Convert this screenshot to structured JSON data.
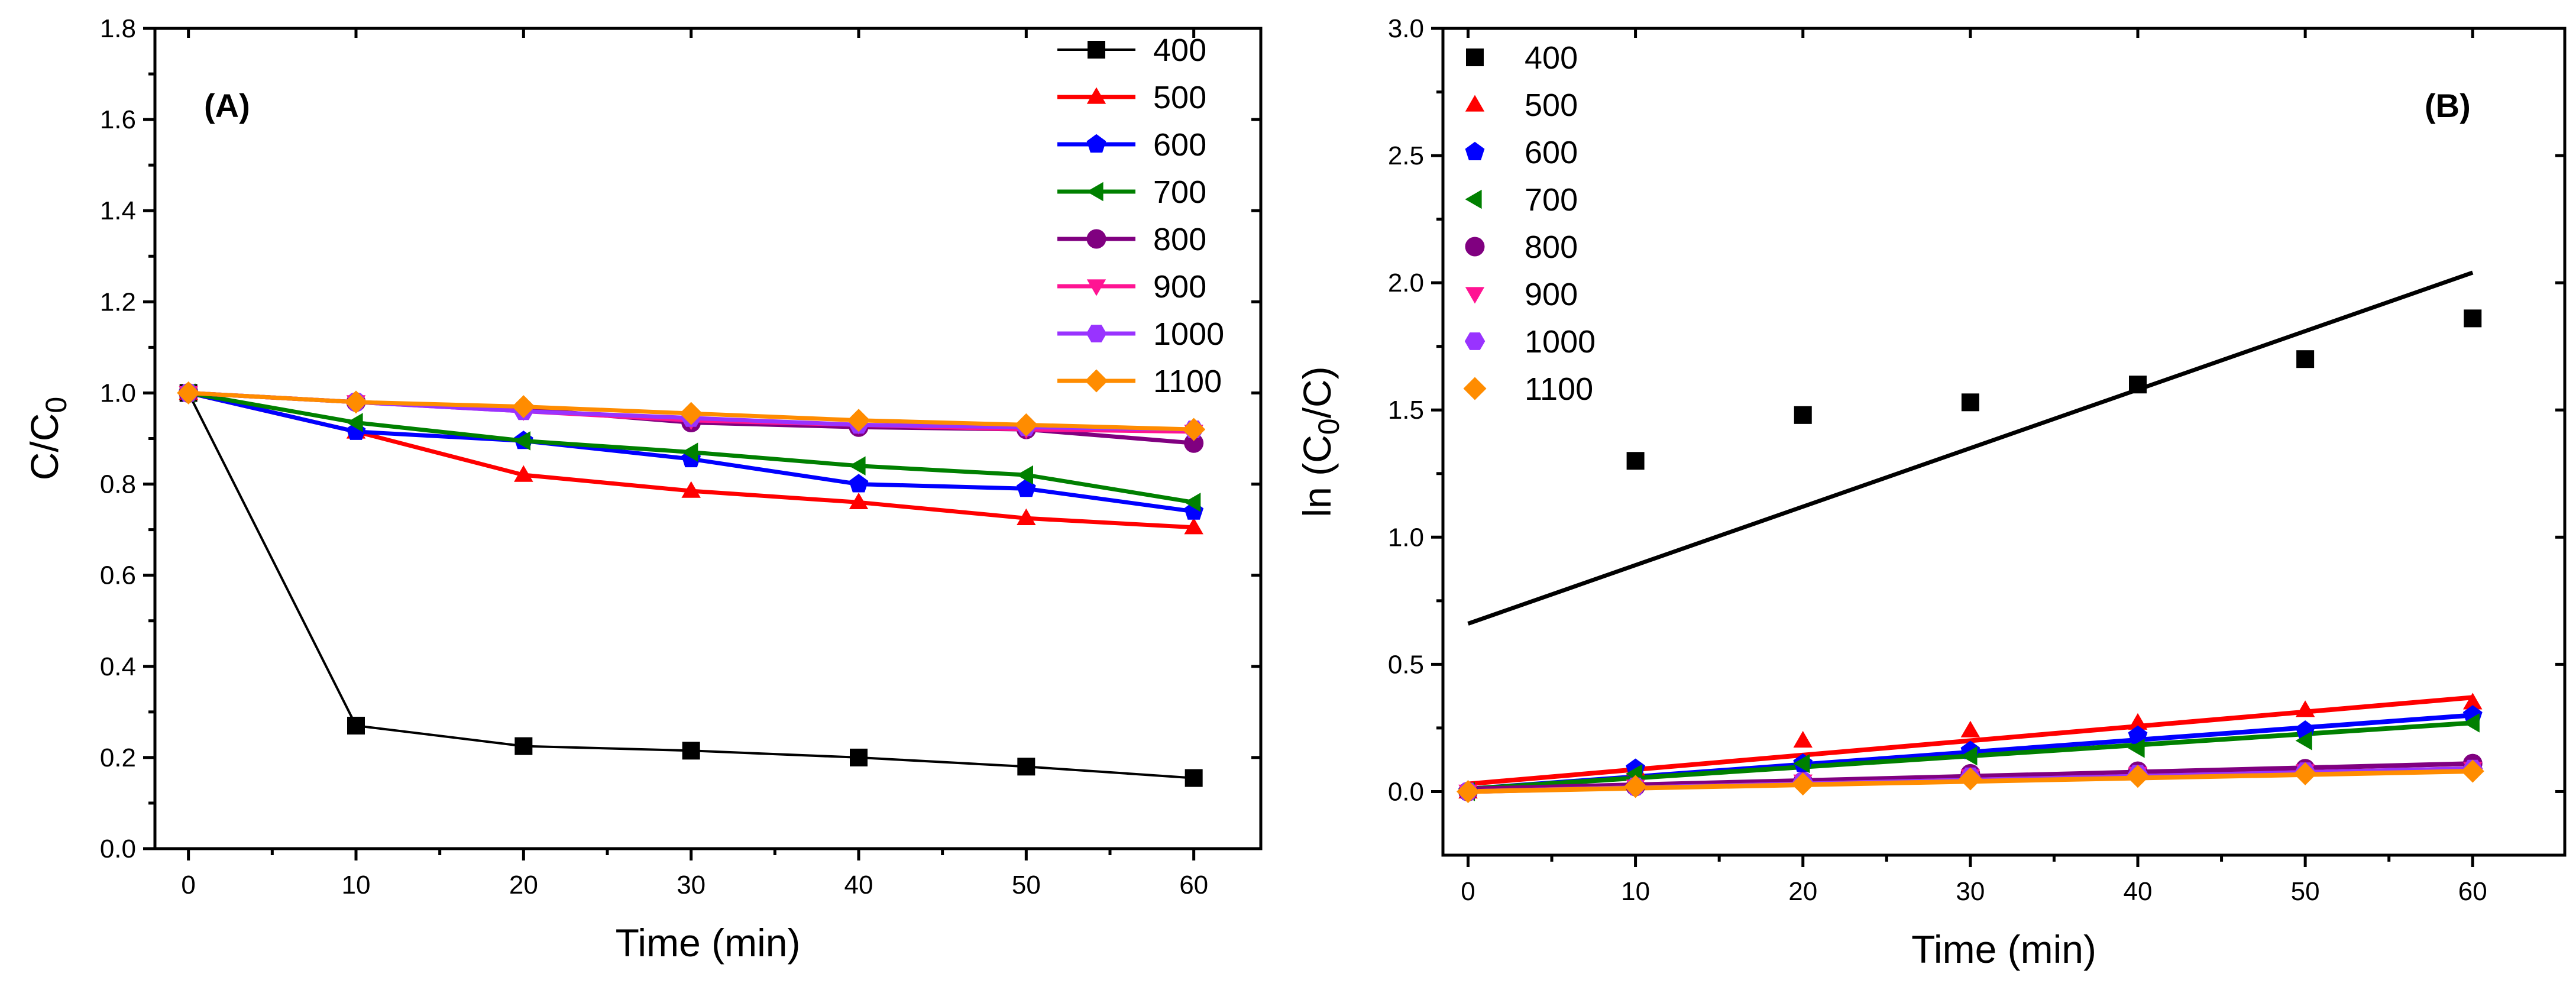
{
  "figure": {
    "panels": [
      "A",
      "B"
    ]
  },
  "chart_data": [
    {
      "type": "line",
      "panel_label": "(A)",
      "title": "",
      "xlabel": "Time (min)",
      "ylabel": {
        "main": "C/C",
        "sub": "0"
      },
      "xlim": [
        -2,
        64
      ],
      "ylim": [
        0,
        1.8
      ],
      "xticks": [
        0,
        10,
        20,
        30,
        40,
        50,
        60
      ],
      "yticks": [
        "0.0",
        "0.2",
        "0.4",
        "0.6",
        "0.8",
        "1.0",
        "1.2",
        "1.4",
        "1.6",
        "1.8"
      ],
      "yticks_values": [
        0,
        0.2,
        0.4,
        0.6,
        0.8,
        1.0,
        1.2,
        1.4,
        1.6,
        1.8
      ],
      "grid": false,
      "legend_position": "top-right",
      "x": [
        0,
        10,
        20,
        30,
        40,
        50,
        60
      ],
      "series": [
        {
          "name": "400",
          "color": "#000000",
          "marker": "square",
          "values": [
            1.0,
            0.27,
            0.225,
            0.215,
            0.2,
            0.18,
            0.155
          ]
        },
        {
          "name": "500",
          "color": "#ff0000",
          "marker": "triangle-up",
          "values": [
            1.0,
            0.915,
            0.82,
            0.785,
            0.76,
            0.725,
            0.705
          ]
        },
        {
          "name": "600",
          "color": "#0000ff",
          "marker": "pentagon",
          "values": [
            1.0,
            0.915,
            0.895,
            0.855,
            0.8,
            0.79,
            0.74
          ]
        },
        {
          "name": "700",
          "color": "#008000",
          "marker": "triangle-left",
          "values": [
            1.0,
            0.935,
            0.895,
            0.87,
            0.84,
            0.82,
            0.76
          ]
        },
        {
          "name": "800",
          "color": "#800080",
          "marker": "circle",
          "values": [
            1.0,
            0.98,
            0.965,
            0.935,
            0.925,
            0.92,
            0.89
          ]
        },
        {
          "name": "900",
          "color": "#ff1493",
          "marker": "triangle-down",
          "values": [
            1.0,
            0.98,
            0.96,
            0.94,
            0.93,
            0.92,
            0.915
          ]
        },
        {
          "name": "1000",
          "color": "#9933ff",
          "marker": "hexagon",
          "values": [
            1.0,
            0.98,
            0.96,
            0.945,
            0.93,
            0.925,
            0.92
          ]
        },
        {
          "name": "1100",
          "color": "#ff8c00",
          "marker": "diamond",
          "values": [
            1.0,
            0.98,
            0.97,
            0.955,
            0.94,
            0.93,
            0.92
          ]
        }
      ]
    },
    {
      "type": "scatter",
      "panel_label": "(B)",
      "title": "",
      "xlabel": "Time (min)",
      "ylabel": {
        "prefix": "ln (C",
        "sub": "0",
        "suffix": "/C)"
      },
      "xlim": [
        -1.5,
        65.5
      ],
      "ylim": [
        -0.25,
        3.0
      ],
      "xticks": [
        0,
        10,
        20,
        30,
        40,
        50,
        60
      ],
      "yticks": [
        "0.0",
        "0.5",
        "1.0",
        "1.5",
        "2.0",
        "2.5",
        "3.0"
      ],
      "yticks_values": [
        0,
        0.5,
        1.0,
        1.5,
        2.0,
        2.5,
        3.0
      ],
      "grid": false,
      "legend_position": "top-left",
      "x": [
        0,
        10,
        20,
        30,
        40,
        50,
        60
      ],
      "series": [
        {
          "name": "400",
          "color": "#000000",
          "marker": "square",
          "values": [
            null,
            1.3,
            1.48,
            1.53,
            1.6,
            1.7,
            1.86
          ],
          "fit": [
            0.66,
            2.04
          ]
        },
        {
          "name": "500",
          "color": "#ff0000",
          "marker": "triangle-up",
          "values": [
            0,
            0.09,
            0.2,
            0.24,
            0.27,
            0.32,
            0.35
          ],
          "fit": [
            0.03,
            0.37
          ]
        },
        {
          "name": "600",
          "color": "#0000ff",
          "marker": "pentagon",
          "values": [
            0,
            0.09,
            0.11,
            0.16,
            0.22,
            0.24,
            0.3
          ],
          "fit": [
            0.01,
            0.3
          ]
        },
        {
          "name": "700",
          "color": "#008000",
          "marker": "triangle-left",
          "values": [
            0,
            0.07,
            0.11,
            0.14,
            0.17,
            0.2,
            0.27
          ],
          "fit": [
            0.01,
            0.27
          ]
        },
        {
          "name": "800",
          "color": "#800080",
          "marker": "circle",
          "values": [
            0,
            0.02,
            0.04,
            0.07,
            0.08,
            0.09,
            0.11
          ],
          "fit": [
            0.01,
            0.11
          ]
        },
        {
          "name": "900",
          "color": "#ff1493",
          "marker": "triangle-down",
          "values": [
            0,
            0.02,
            0.04,
            0.06,
            0.07,
            0.08,
            0.09
          ],
          "fit": [
            0.0,
            0.09
          ]
        },
        {
          "name": "1000",
          "color": "#9933ff",
          "marker": "hexagon",
          "values": [
            0,
            0.02,
            0.04,
            0.06,
            0.07,
            0.08,
            0.09
          ],
          "fit": [
            0.0,
            0.09
          ]
        },
        {
          "name": "1100",
          "color": "#ff8c00",
          "marker": "diamond",
          "values": [
            0,
            0.02,
            0.03,
            0.05,
            0.06,
            0.07,
            0.08
          ],
          "fit": [
            0.0,
            0.08
          ]
        }
      ]
    }
  ]
}
